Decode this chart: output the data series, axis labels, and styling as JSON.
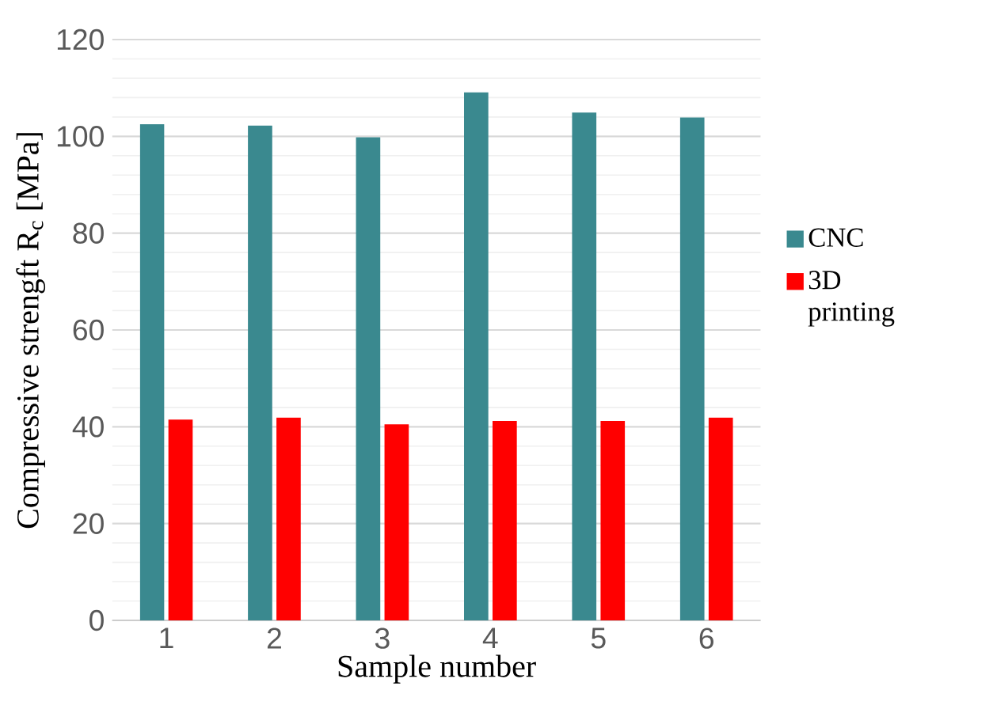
{
  "chart_data": {
    "type": "bar",
    "xlabel": "Sample number",
    "ylabel": "Compressive strengft R$_{c}$ [MPa]",
    "categories": [
      "1",
      "2",
      "3",
      "4",
      "5",
      "6"
    ],
    "series": [
      {
        "name": "CNC",
        "color": "#3a898f",
        "values": [
          102.5,
          102.2,
          99.8,
          109.1,
          104.9,
          103.9
        ]
      },
      {
        "name": "3D printing",
        "color": "#ff0000",
        "values": [
          41.5,
          41.9,
          40.5,
          41.2,
          41.2,
          41.9
        ]
      }
    ],
    "ylim": [
      0,
      120
    ],
    "yticks": [
      0,
      20,
      40,
      60,
      80,
      100,
      120
    ],
    "grid": "y",
    "legend": "right"
  }
}
